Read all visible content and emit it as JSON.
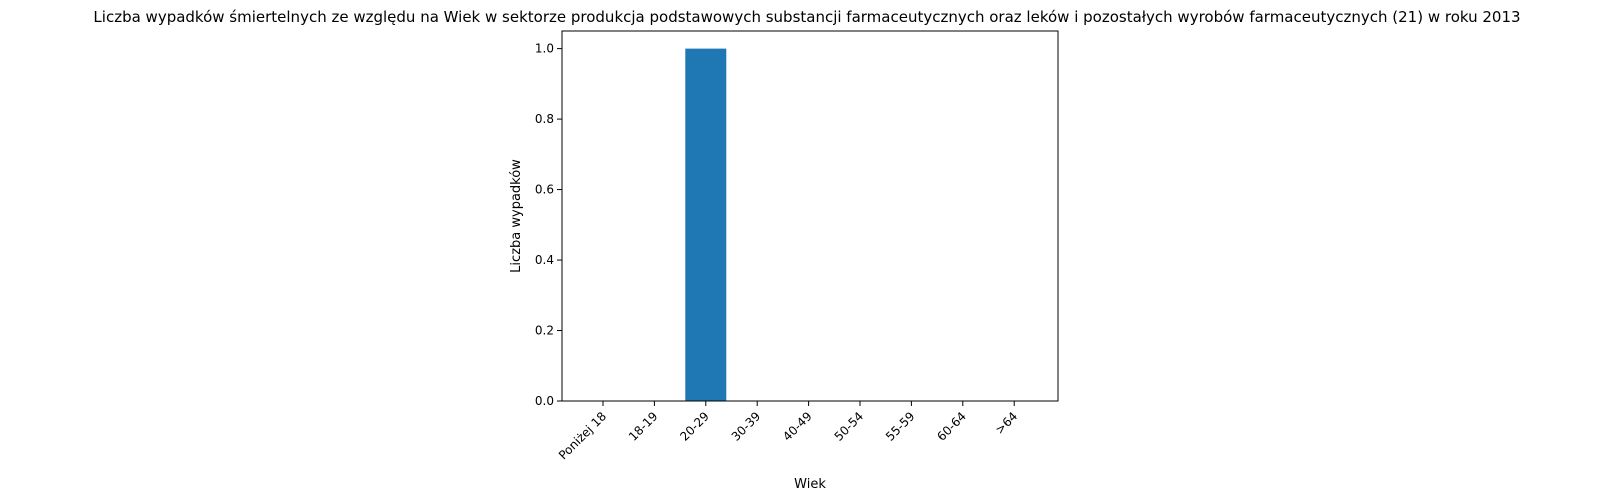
{
  "chart_data": {
    "type": "bar",
    "title": "Liczba wypadków śmiertelnych ze względu na Wiek w sektorze produkcja podstawowych substancji farmaceutycznych oraz leków i pozostałych wyrobów farmaceutycznych (21)  w roku 2013",
    "xlabel": "Wiek",
    "ylabel": "Liczba wypadków",
    "categories": [
      "Poniżej 18",
      "18-19",
      "20-29",
      "30-39",
      "40-49",
      "50-54",
      "55-59",
      "60-64",
      ">64"
    ],
    "values": [
      0,
      0,
      1,
      0,
      0,
      0,
      0,
      0,
      0
    ],
    "ylim": [
      0,
      1.05
    ],
    "yticks": [
      "0.0",
      "0.2",
      "0.4",
      "0.6",
      "0.8",
      "1.0"
    ],
    "bar_color": "#1f77b4",
    "grid": false
  }
}
